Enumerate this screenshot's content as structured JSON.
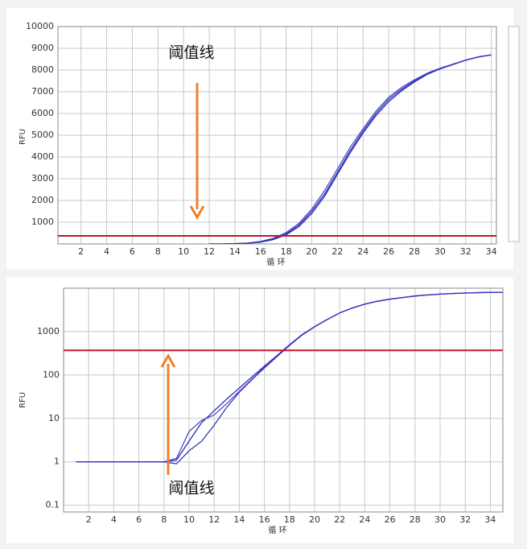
{
  "chart_data": [
    {
      "type": "line",
      "ylabel": "RFU",
      "xlabel": "循 环",
      "xlim": [
        0.2,
        34.4
      ],
      "ylim": [
        0,
        10000
      ],
      "xticks": [
        2,
        4,
        6,
        8,
        10,
        12,
        14,
        16,
        18,
        20,
        22,
        24,
        26,
        28,
        30,
        32,
        34
      ],
      "yticks": [
        1000,
        2000,
        3000,
        4000,
        5000,
        6000,
        7000,
        8000,
        9000,
        10000
      ],
      "grid": true,
      "log_scale": false,
      "threshold": 370,
      "threshold_color": "#c0182a",
      "annotation": "阈值线",
      "annotation_color": "#f07f2e",
      "x": [
        12,
        13,
        14,
        15,
        16,
        17,
        18,
        19,
        20,
        21,
        22,
        23,
        24,
        25,
        26,
        27,
        28,
        29,
        30,
        31,
        32,
        33,
        34
      ],
      "series": [
        {
          "color": "#2a2ab5",
          "values": [
            0,
            0,
            10,
            30,
            80,
            200,
            420,
            800,
            1400,
            2200,
            3200,
            4200,
            5100,
            5900,
            6550,
            7050,
            7450,
            7800,
            8050,
            8250,
            8450,
            8600,
            8700
          ]
        },
        {
          "color": "#4a4ac8",
          "values": [
            0,
            0,
            15,
            40,
            110,
            260,
            520,
            950,
            1600,
            2450,
            3450,
            4450,
            5300,
            6100,
            6750,
            7200,
            7550,
            7850,
            8080,
            8270,
            8460,
            8610,
            8700
          ]
        },
        {
          "color": "#3636bd",
          "values": [
            0,
            0,
            12,
            35,
            95,
            230,
            470,
            870,
            1500,
            2300,
            3300,
            4300,
            5200,
            6000,
            6650,
            7120,
            7500,
            7820,
            8060,
            8260,
            8455,
            8605,
            8700
          ]
        }
      ]
    },
    {
      "type": "line",
      "ylabel": "RFU",
      "xlabel": "循 环",
      "xlim": [
        0,
        35
      ],
      "ylim": [
        0.07,
        10000
      ],
      "xticks": [
        2,
        4,
        6,
        8,
        10,
        12,
        14,
        16,
        18,
        20,
        22,
        24,
        26,
        28,
        30,
        32,
        34
      ],
      "yticks": [
        0.1,
        1,
        10,
        100,
        1000
      ],
      "grid": true,
      "log_scale": true,
      "threshold": 370,
      "threshold_color": "#c0182a",
      "annotation": "阈值线",
      "annotation_color": "#f07f2e",
      "x": [
        1,
        2,
        3,
        4,
        5,
        6,
        7,
        8,
        9,
        10,
        11,
        12,
        13,
        14,
        15,
        16,
        17,
        18,
        19,
        20,
        21,
        22,
        23,
        24,
        25,
        26,
        27,
        28,
        29,
        30,
        31,
        32,
        33,
        34,
        35
      ],
      "series": [
        {
          "color": "#2a2ab5",
          "values": [
            1,
            1,
            1,
            1,
            1,
            1,
            1,
            1,
            1.1,
            3,
            8,
            15,
            28,
            50,
            90,
            160,
            280,
            500,
            850,
            1300,
            1900,
            2700,
            3500,
            4300,
            5000,
            5600,
            6100,
            6600,
            7000,
            7300,
            7550,
            7750,
            7900,
            8000,
            8050
          ]
        },
        {
          "color": "#4a4ac8",
          "values": [
            1,
            1,
            1,
            1,
            1,
            1,
            1,
            1,
            1.2,
            5,
            9,
            12,
            22,
            42,
            80,
            150,
            270,
            490,
            840,
            1300,
            1900,
            2700,
            3500,
            4300,
            5000,
            5600,
            6100,
            6600,
            7000,
            7300,
            7550,
            7750,
            7900,
            8000,
            8050
          ]
        },
        {
          "color": "#3636bd",
          "values": [
            1,
            1,
            1,
            1,
            1,
            1,
            1,
            1,
            0.9,
            1.8,
            3,
            7,
            18,
            40,
            78,
            145,
            265,
            480,
            830,
            1280,
            1880,
            2680,
            3480,
            4280,
            4980,
            5580,
            6080,
            6580,
            6980,
            7280,
            7530,
            7730,
            7880,
            7980,
            8040
          ]
        }
      ]
    }
  ]
}
